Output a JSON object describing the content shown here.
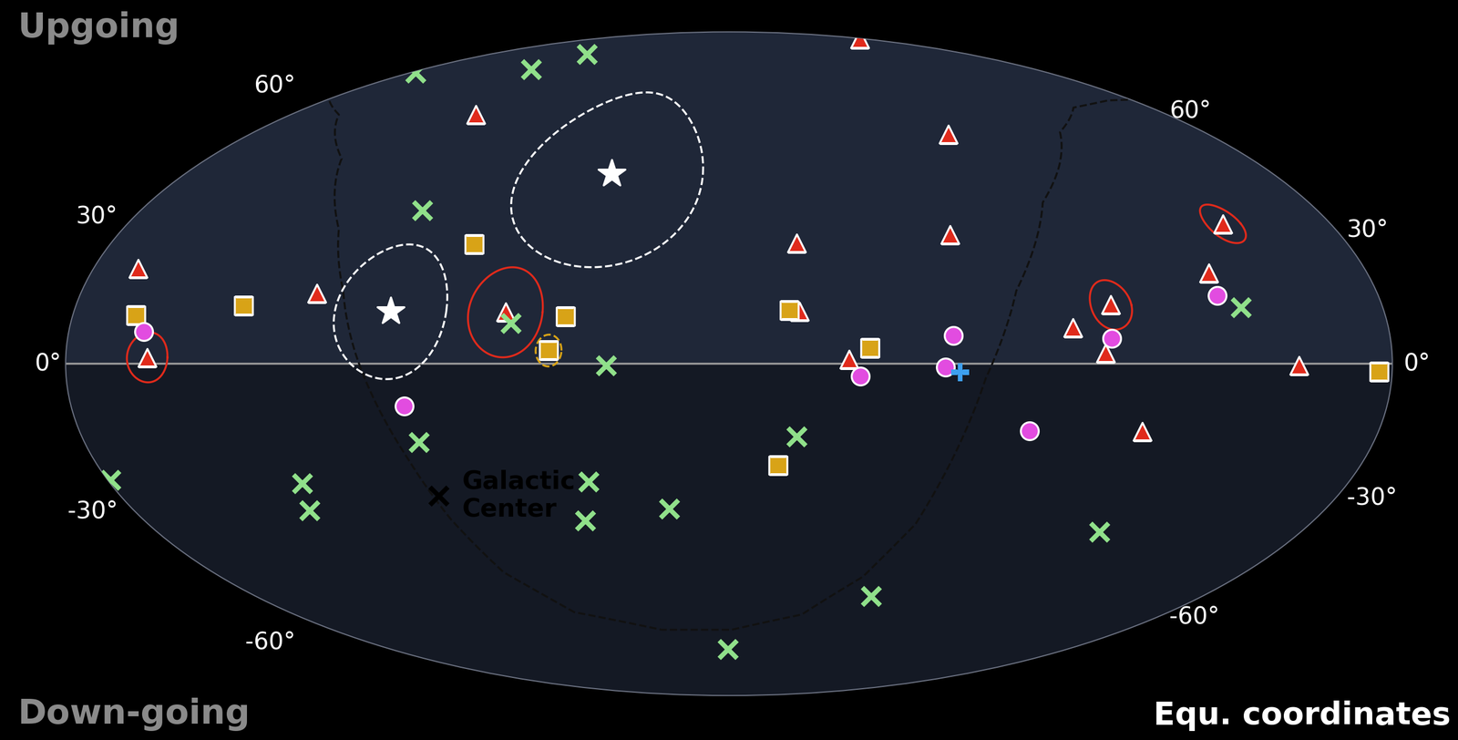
{
  "chart_data": {
    "type": "scatter",
    "subtitle": "Equ. coordinates",
    "region_labels": {
      "upper": "Upgoing",
      "lower": "Down-going"
    },
    "xlim": [
      -180,
      180
    ],
    "ylim": [
      -90,
      90
    ],
    "yticks": [
      {
        "value": -60,
        "label": "-60°"
      },
      {
        "value": -30,
        "label": "-30°"
      },
      {
        "value": 0,
        "label": "0°"
      },
      {
        "value": 30,
        "label": "30°"
      },
      {
        "value": 60,
        "label": "60°"
      }
    ],
    "tick_labels": "y",
    "grid": false,
    "annotations": [
      {
        "text": "Galactic\nCenter",
        "x": -85.8,
        "y": -29.5
      }
    ],
    "series": [
      {
        "type": "line",
        "line_style": "dashed",
        "color": "#111111",
        "x": [
          -177.4,
          -160.2,
          -133.7,
          -115.8,
          -107.3,
          -101.5,
          -96.3,
          -91.0,
          -85.4,
          -78.6,
          -63.4,
          -30.6,
          1.2,
          30.1,
          47.4,
          57.8,
          63.0,
          69.7,
          79.9,
          97.4,
          125.4,
          147.0,
          169.0,
          179.5
        ],
        "y": [
          62.8,
          58.9,
          47.2,
          30.1,
          16.1,
          2.5,
          -9.1,
          -20.9,
          -35.1,
          -48.1,
          -58.7,
          -63.8,
          -63.8,
          -59.4,
          -49.2,
          -36.2,
          -21.9,
          -3.3,
          16.1,
          36.4,
          54.1,
          60.9,
          63.0,
          63.2
        ]
      },
      {
        "type": "scatter",
        "marker": "triangle",
        "color": "#e02a1b",
        "x": [
          174.2,
          -104.0,
          82.4,
          19.7,
          65.1,
          -167.3,
          -114.4,
          -61.4,
          19.3,
          147.9,
          135.4,
          105.3,
          93.8,
          102.2,
          32.6,
          -157.9,
          154.6,
          114.6
        ],
        "y": [
          85.1,
          58.9,
          53.6,
          26.9,
          28.9,
          21.1,
          15.6,
          11.4,
          11.6,
          31.4,
          20.1,
          13.0,
          7.9,
          2.3,
          1.0,
          1.4,
          -0.4,
          -15.0
        ],
        "error_radius": [
          null,
          null,
          null,
          null,
          null,
          null,
          null,
          10,
          null,
          4.5,
          null,
          5.5,
          null,
          null,
          null,
          5.5,
          null,
          null
        ]
      },
      {
        "type": "scatter",
        "marker": "square",
        "color": "#d8a317",
        "x": [
          -74.2,
          -133.8,
          -162.7,
          -44.9,
          16.6,
          -49.0,
          38.3,
          176.5,
          14.0
        ],
        "y": [
          26.7,
          12.8,
          10.7,
          10.5,
          11.8,
          2.9,
          3.5,
          -1.7,
          -22.5
        ],
        "error_radius": [
          null,
          null,
          null,
          null,
          null,
          3.5,
          null,
          null,
          null
        ]
      },
      {
        "type": "scatter",
        "marker": "circle",
        "color": "#e24ce0",
        "x": [
          -159.6,
          135.3,
          61.1,
          104.2,
          58.7,
          35.7,
          -88.9,
          83.3
        ],
        "y": [
          7.0,
          15.0,
          6.2,
          5.6,
          -0.8,
          -2.7,
          -9.3,
          -14.8
        ]
      },
      {
        "type": "scatter",
        "marker": "x",
        "color": "#90e08a",
        "x": [
          -177.4,
          -115.9,
          -106.9,
          -93.8,
          -59.7,
          140.9,
          -33.3,
          -86.6,
          18.8,
          -179.2,
          -124.2,
          -127.0,
          -40.7,
          -44.2,
          -18.0,
          116.7,
          54.0,
          -0.5
        ],
        "y": [
          71.7,
          72.7,
          78.3,
          34.5,
          8.9,
          12.4,
          -0.4,
          -17.3,
          -16.1,
          -25.9,
          -26.7,
          -33.0,
          -26.3,
          -35.3,
          -32.6,
          -38.1,
          -54.3,
          -69.8
        ]
      },
      {
        "type": "scatter",
        "marker": "star",
        "color": "#ffffff",
        "x": [
          -93.0,
          -38.9
        ],
        "y": [
          11.6,
          43.4
        ],
        "error_radius": [
          15,
          22
        ]
      },
      {
        "type": "scatter",
        "marker": "plus",
        "color": "#3da0f0",
        "x": [
          62.8
        ],
        "y": [
          -1.9
        ]
      },
      {
        "type": "scatter",
        "marker": "x",
        "color": "#000000",
        "x": [
          -85.8
        ],
        "y": [
          -29.5
        ]
      }
    ]
  }
}
